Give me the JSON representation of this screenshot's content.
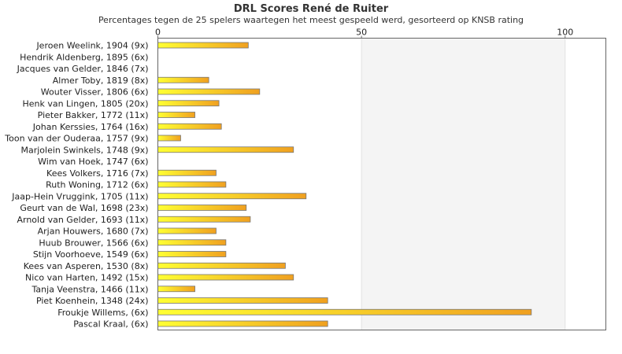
{
  "chart_data": {
    "type": "bar",
    "orientation": "horizontal",
    "title": "DRL Scores René de Ruiter",
    "subtitle": "Percentages tegen de 25 spelers waartegen het meest gespeeld werd, gesorteerd op KNSB rating",
    "xlim": [
      0,
      110
    ],
    "xticks": [
      0,
      50,
      100
    ],
    "grid": true,
    "categories": [
      "Jeroen Weelink, 1904 (9x)",
      "Hendrik Aldenberg, 1895 (6x)",
      "Jacques van Gelder, 1846 (7x)",
      "Almer Toby, 1819 (8x)",
      "Wouter Visser, 1806 (6x)",
      "Henk van Lingen, 1805 (20x)",
      "Pieter Bakker, 1772 (11x)",
      "Johan Kerssies, 1764 (16x)",
      "Toon van der Ouderaa, 1757 (9x)",
      "Marjolein Swinkels, 1748 (9x)",
      "Wim van Hoek, 1747 (6x)",
      "Kees Volkers, 1716 (7x)",
      "Ruth Woning, 1712 (6x)",
      "Jaap-Hein Vruggink, 1705 (11x)",
      "Geurt van de Wal, 1698 (23x)",
      "Arnold van Gelder, 1693 (11x)",
      "Arjan Houwers, 1680 (7x)",
      "Huub Brouwer, 1566 (6x)",
      "Stijn Voorhoeve, 1549 (6x)",
      "Kees van Asperen, 1530 (8x)",
      "Nico van Harten, 1492 (15x)",
      "Tanja Veenstra, 1466 (11x)",
      "Piet Koenhein, 1348 (24x)",
      "Froukje Willems,  (6x)",
      "Pascal Kraal,  (6x)"
    ],
    "values": [
      22.2,
      0,
      0,
      12.5,
      25,
      15,
      9.1,
      15.6,
      5.6,
      33.3,
      0,
      14.3,
      16.7,
      36.4,
      21.7,
      22.7,
      14.3,
      16.7,
      16.7,
      31.3,
      33.3,
      9.1,
      41.7,
      91.7,
      41.7
    ],
    "colors": {
      "bar_start": "#ffff33",
      "bar_end": "#f0a020",
      "bar_border": "#777777",
      "band_light": "#f4f4f4",
      "plot_border": "#666666"
    }
  }
}
